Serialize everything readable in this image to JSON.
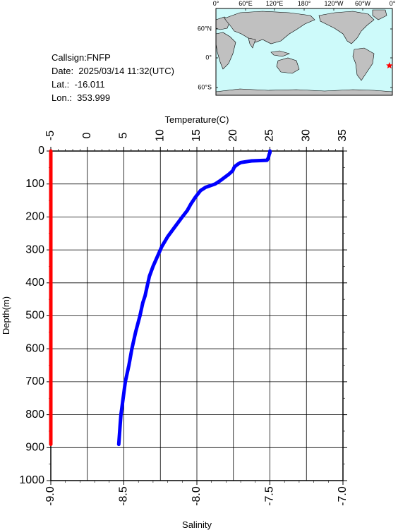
{
  "info": {
    "callsign": "Callsign:FNFP",
    "date": "Date:  2025/03/14 11:32(UTC)",
    "lat": "Lat.:  -16.011",
    "lon": "Lon.:  353.999"
  },
  "map": {
    "top_labels": [
      "0°",
      "60°E",
      "120°E",
      "180°",
      "120°W",
      "60°W",
      "0°"
    ],
    "side_labels": [
      "60°N",
      "0°",
      "60°S"
    ],
    "ocean_color": "#cdfafa",
    "land_color": "#c0c0c0",
    "marker_color": "#ff0000",
    "marker_lon": 353.999,
    "marker_lat": -16.011
  },
  "chart_data": {
    "type": "line",
    "ylabel": "Depth(m)",
    "ylim": [
      1000,
      0
    ],
    "yticks": [
      "0",
      "100",
      "200",
      "300",
      "400",
      "500",
      "600",
      "700",
      "800",
      "900",
      "1000"
    ],
    "temperature_axis": {
      "label": "Temperature(C)",
      "lim": [
        -5,
        35
      ],
      "ticks": [
        "-5",
        "0",
        "5",
        "10",
        "15",
        "20",
        "25",
        "30",
        "35"
      ]
    },
    "salinity_axis": {
      "label": "Salinity",
      "lim": [
        -9.0,
        -7.0
      ],
      "ticks": [
        "-9.0",
        "-8.5",
        "-8.0",
        "-7.5",
        "-7.0"
      ]
    },
    "grid": true,
    "series": [
      {
        "color": "#0000ff",
        "axis": "temperature",
        "depth": [
          0,
          5,
          10,
          20,
          28,
          30,
          35,
          40,
          45,
          50,
          60,
          70,
          80,
          90,
          100,
          110,
          120,
          140,
          160,
          180,
          200,
          230,
          260,
          290,
          320,
          350,
          380,
          410,
          440,
          460,
          500,
          550,
          600,
          650,
          700,
          750,
          800,
          830,
          860,
          890
        ],
        "values": [
          25.0,
          25.0,
          24.9,
          24.8,
          24.6,
          22.5,
          21.0,
          20.6,
          20.3,
          20.1,
          19.9,
          19.4,
          18.8,
          18.2,
          17.5,
          16.2,
          15.5,
          14.8,
          14.2,
          13.7,
          13.0,
          12.0,
          11.0,
          10.2,
          9.6,
          9.0,
          8.5,
          8.2,
          7.9,
          7.6,
          7.2,
          6.6,
          6.1,
          5.7,
          5.2,
          4.9,
          4.6,
          4.5,
          4.4,
          4.3
        ]
      },
      {
        "color": "#ff0000",
        "axis": "salinity",
        "depth": [
          0,
          890
        ],
        "values": [
          -9.0,
          -9.0
        ]
      }
    ]
  }
}
